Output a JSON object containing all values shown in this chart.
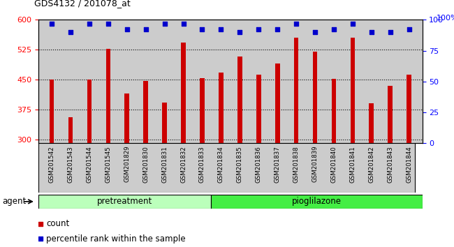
{
  "title": "GDS4132 / 201078_at",
  "samples": [
    "GSM201542",
    "GSM201543",
    "GSM201544",
    "GSM201545",
    "GSM201829",
    "GSM201830",
    "GSM201831",
    "GSM201832",
    "GSM201833",
    "GSM201834",
    "GSM201835",
    "GSM201836",
    "GSM201837",
    "GSM201838",
    "GSM201839",
    "GSM201840",
    "GSM201841",
    "GSM201842",
    "GSM201843",
    "GSM201844"
  ],
  "bar_values": [
    450,
    355,
    450,
    527,
    415,
    447,
    392,
    543,
    453,
    468,
    507,
    463,
    490,
    555,
    520,
    452,
    555,
    390,
    435,
    463
  ],
  "percentile_values": [
    97,
    90,
    97,
    97,
    92,
    92,
    97,
    97,
    92,
    92,
    90,
    92,
    92,
    97,
    90,
    92,
    97,
    90,
    90,
    92
  ],
  "bar_color": "#cc0000",
  "dot_color": "#0000cc",
  "ylim_left": [
    290,
    600
  ],
  "ylim_right": [
    0,
    100
  ],
  "yticks_left": [
    300,
    375,
    450,
    525,
    600
  ],
  "yticks_right": [
    0,
    25,
    50,
    75,
    100
  ],
  "group_label_left": "pretreatment",
  "group_label_right": "pioglilazone",
  "pretreatment_count": 9,
  "pioglilazone_count": 11,
  "group_color_light": "#bbffbb",
  "group_color_dark": "#44ee44",
  "agent_label": "agent",
  "legend_count_label": "count",
  "legend_pct_label": "percentile rank within the sample",
  "plot_bg_color": "#cccccc",
  "fig_bg_color": "#ffffff"
}
